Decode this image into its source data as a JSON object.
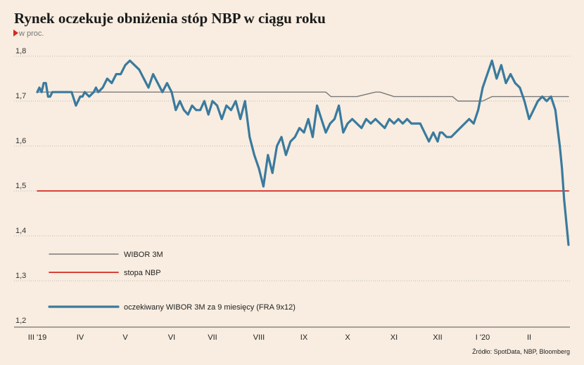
{
  "header": {
    "title": "Rynek oczekuje obniżenia stóp NBP w ciągu roku",
    "unit": "w proc."
  },
  "source": "Źródło: SpotData, NBP, Bloomberg",
  "colors": {
    "background": "#f8ede0",
    "wibor": "#7a7a7a",
    "stopa": "#d42a20",
    "fra": "#3a7a9e",
    "grid": "#bdb6ae",
    "unit_marker": "#d42a20"
  },
  "chart_data": {
    "type": "line",
    "x_tick_labels": [
      "III '19",
      "IV",
      "V",
      "VI",
      "VII",
      "VIII",
      "IX",
      "X",
      "XI",
      "XII",
      "I '20",
      "II"
    ],
    "y_ticks": [
      "1,2",
      "1,3",
      "1,4",
      "1,5",
      "1,6",
      "1,7",
      "1,8"
    ],
    "ylim": [
      1.2,
      1.8
    ],
    "grid": "horizontal dotted",
    "legend_position": "bottom-left",
    "series": [
      {
        "name": "WIBOR 3M",
        "x": [
          0,
          0.5,
          1,
          3,
          4,
          4.5,
          4.58,
          5,
          5.15,
          5.3,
          5.7,
          6.3,
          6.5,
          6.62,
          6.8,
          7.2,
          7.6,
          7.7,
          8,
          8.3,
          8.6,
          9,
          9.2,
          9.33,
          9.45,
          9.65,
          10,
          10.2,
          10.5,
          11,
          11.5,
          11.9
        ],
        "values": [
          1.72,
          1.72,
          1.72,
          1.72,
          1.72,
          1.72,
          1.72,
          1.72,
          1.72,
          1.72,
          1.72,
          1.72,
          1.72,
          1.71,
          1.71,
          1.71,
          1.72,
          1.72,
          1.71,
          1.71,
          1.71,
          1.71,
          1.71,
          1.71,
          1.7,
          1.7,
          1.7,
          1.71,
          1.71,
          1.71,
          1.71,
          1.71
        ]
      },
      {
        "name": "stopa NBP",
        "x": [
          0,
          11.9
        ],
        "values": [
          1.5,
          1.5
        ]
      },
      {
        "name": "oczekiwany WIBOR 3M za 9 miesięcy (FRA 9x12)",
        "x": [
          0,
          0.05,
          0.1,
          0.15,
          0.2,
          0.25,
          0.3,
          0.35,
          0.4,
          0.5,
          0.6,
          0.7,
          0.8,
          0.9,
          1.0,
          1.05,
          1.1,
          1.2,
          1.3,
          1.35,
          1.4,
          1.5,
          1.6,
          1.7,
          1.8,
          1.9,
          2.0,
          2.1,
          2.2,
          2.3,
          2.4,
          2.5,
          2.6,
          2.7,
          2.8,
          2.9,
          3.0,
          3.1,
          3.2,
          3.3,
          3.4,
          3.5,
          3.6,
          3.7,
          3.8,
          3.9,
          4.0,
          4.1,
          4.2,
          4.3,
          4.4,
          4.5,
          4.6,
          4.7,
          4.8,
          4.9,
          5.0,
          5.1,
          5.2,
          5.3,
          5.4,
          5.5,
          5.6,
          5.7,
          5.8,
          5.9,
          6.0,
          6.1,
          6.2,
          6.3,
          6.4,
          6.5,
          6.6,
          6.7,
          6.8,
          6.9,
          7.0,
          7.1,
          7.2,
          7.3,
          7.4,
          7.5,
          7.6,
          7.7,
          7.8,
          7.9,
          8.0,
          8.1,
          8.2,
          8.3,
          8.4,
          8.5,
          8.6,
          8.7,
          8.8,
          8.9,
          9.0,
          9.05,
          9.1,
          9.2,
          9.3,
          9.4,
          9.5,
          9.6,
          9.7,
          9.8,
          9.9,
          10.0,
          10.1,
          10.2,
          10.3,
          10.4,
          10.5,
          10.6,
          10.7,
          10.8,
          10.9,
          11.0,
          11.1,
          11.2,
          11.3,
          11.4,
          11.5,
          11.6,
          11.65,
          11.7,
          11.75,
          11.8,
          11.85,
          11.9
        ],
        "values": [
          1.72,
          1.73,
          1.72,
          1.74,
          1.74,
          1.71,
          1.71,
          1.72,
          1.72,
          1.72,
          1.72,
          1.72,
          1.72,
          1.69,
          1.71,
          1.71,
          1.72,
          1.71,
          1.72,
          1.73,
          1.72,
          1.73,
          1.75,
          1.74,
          1.76,
          1.76,
          1.78,
          1.79,
          1.78,
          1.77,
          1.75,
          1.73,
          1.76,
          1.74,
          1.72,
          1.74,
          1.72,
          1.68,
          1.7,
          1.68,
          1.67,
          1.69,
          1.68,
          1.68,
          1.7,
          1.67,
          1.7,
          1.69,
          1.66,
          1.69,
          1.68,
          1.7,
          1.66,
          1.7,
          1.62,
          1.58,
          1.55,
          1.51,
          1.58,
          1.54,
          1.6,
          1.62,
          1.58,
          1.61,
          1.62,
          1.64,
          1.63,
          1.66,
          1.62,
          1.69,
          1.66,
          1.63,
          1.65,
          1.66,
          1.69,
          1.63,
          1.65,
          1.66,
          1.65,
          1.64,
          1.66,
          1.65,
          1.66,
          1.65,
          1.64,
          1.66,
          1.65,
          1.66,
          1.65,
          1.66,
          1.65,
          1.65,
          1.65,
          1.63,
          1.61,
          1.63,
          1.61,
          1.63,
          1.63,
          1.62,
          1.62,
          1.63,
          1.64,
          1.65,
          1.66,
          1.65,
          1.68,
          1.73,
          1.76,
          1.79,
          1.75,
          1.78,
          1.74,
          1.76,
          1.74,
          1.73,
          1.7,
          1.66,
          1.68,
          1.7,
          1.71,
          1.7,
          1.71,
          1.68,
          1.64,
          1.6,
          1.55,
          1.48,
          1.43,
          1.38
        ]
      }
    ]
  }
}
